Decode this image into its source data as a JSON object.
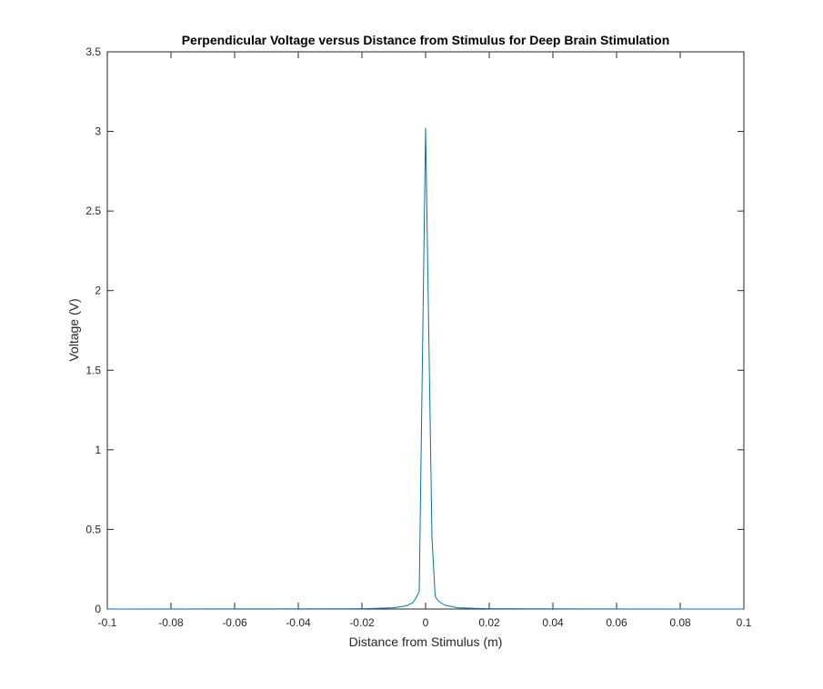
{
  "chart_data": {
    "type": "line",
    "title": "Perpendicular Voltage versus Distance from Stimulus for Deep Brain Stimulation",
    "xlabel": "Distance from Stimulus (m)",
    "ylabel": "Voltage (V)",
    "xlim": [
      -0.1,
      0.1
    ],
    "ylim": [
      0,
      3.5
    ],
    "xticks": [
      -0.1,
      -0.08,
      -0.06,
      -0.04,
      -0.02,
      0,
      0.02,
      0.04,
      0.06,
      0.08,
      0.1
    ],
    "xtick_labels": [
      "-0.1",
      "-0.08",
      "-0.06",
      "-0.04",
      "-0.02",
      "0",
      "0.02",
      "0.04",
      "0.06",
      "0.08",
      "0.1"
    ],
    "yticks": [
      0,
      0.5,
      1,
      1.5,
      2,
      2.5,
      3,
      3.5
    ],
    "ytick_labels": [
      "0",
      "0.5",
      "1",
      "1.5",
      "2",
      "2.5",
      "3",
      "3.5"
    ],
    "grid": false,
    "line_color": "#0072bd",
    "series": [
      {
        "x": [
          -0.1,
          -0.05,
          -0.02,
          -0.015,
          -0.01,
          -0.006,
          -0.004,
          -0.003,
          -0.002,
          0,
          0.002,
          0.003,
          0.004,
          0.006,
          0.01,
          0.015,
          0.02,
          0.05,
          0.1
        ],
        "values": [
          0.0,
          0.0005,
          0.002,
          0.004,
          0.008,
          0.02,
          0.04,
          0.07,
          0.11,
          3.02,
          0.45,
          0.08,
          0.05,
          0.025,
          0.008,
          0.004,
          0.002,
          0.0005,
          0.0
        ]
      }
    ]
  }
}
